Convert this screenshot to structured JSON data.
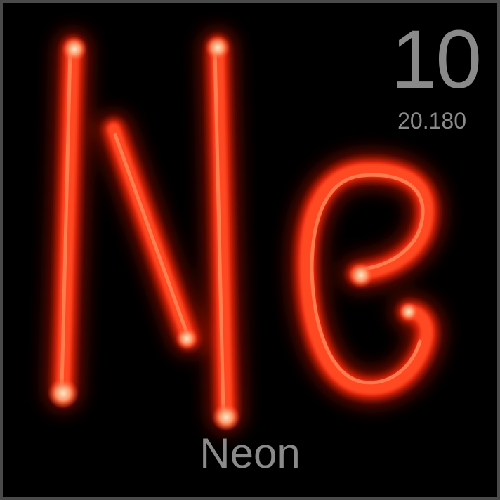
{
  "element": {
    "symbol": "Ne",
    "atomic_number": "10",
    "atomic_mass": "20.180",
    "name": "Neon"
  },
  "colors": {
    "background": "#000000",
    "border": "#4a4a4a",
    "text": "#8a8a8a",
    "neon_core": "#ff3b1a",
    "neon_glow": "#ff1a00",
    "neon_hot": "#ffd2a0"
  },
  "icons": {
    "symbol_art": "neon-tube-ne-icon"
  }
}
